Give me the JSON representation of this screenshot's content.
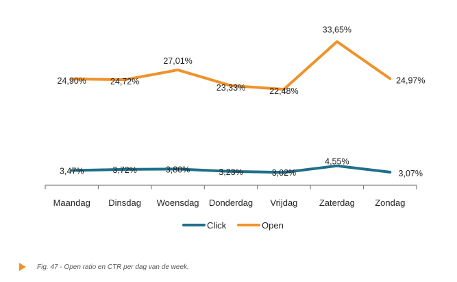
{
  "chart_data": {
    "type": "line",
    "categories": [
      "Maandag",
      "Dinsdag",
      "Woensdag",
      "Donderdag",
      "Vrijdag",
      "Zaterdag",
      "Zondag"
    ],
    "series": [
      {
        "name": "Click",
        "values": [
          3.47,
          3.72,
          3.8,
          3.23,
          3.02,
          4.55,
          3.07
        ],
        "labels": [
          "3,47%",
          "3,72%",
          "3,80%",
          "3,23%",
          "3,02%",
          "4,55%",
          "3,07%"
        ],
        "color": "#1f6f8b"
      },
      {
        "name": "Open",
        "values": [
          24.9,
          24.72,
          27.01,
          23.33,
          22.48,
          33.65,
          24.97
        ],
        "labels": [
          "24,90%",
          "24,72%",
          "27,01%",
          "23,33%",
          "22,48%",
          "33,65%",
          "24,97%"
        ],
        "color": "#f0922b"
      }
    ],
    "ylim": [
      0,
      36
    ],
    "title": "",
    "xlabel": "",
    "ylabel": "",
    "legend_position": "bottom",
    "grid": false
  },
  "caption": "Fig. 47 - Open ratio en CTR per dag van de week.",
  "colors": {
    "axis": "#808080",
    "text": "#222222",
    "accent": "#f0922b"
  }
}
